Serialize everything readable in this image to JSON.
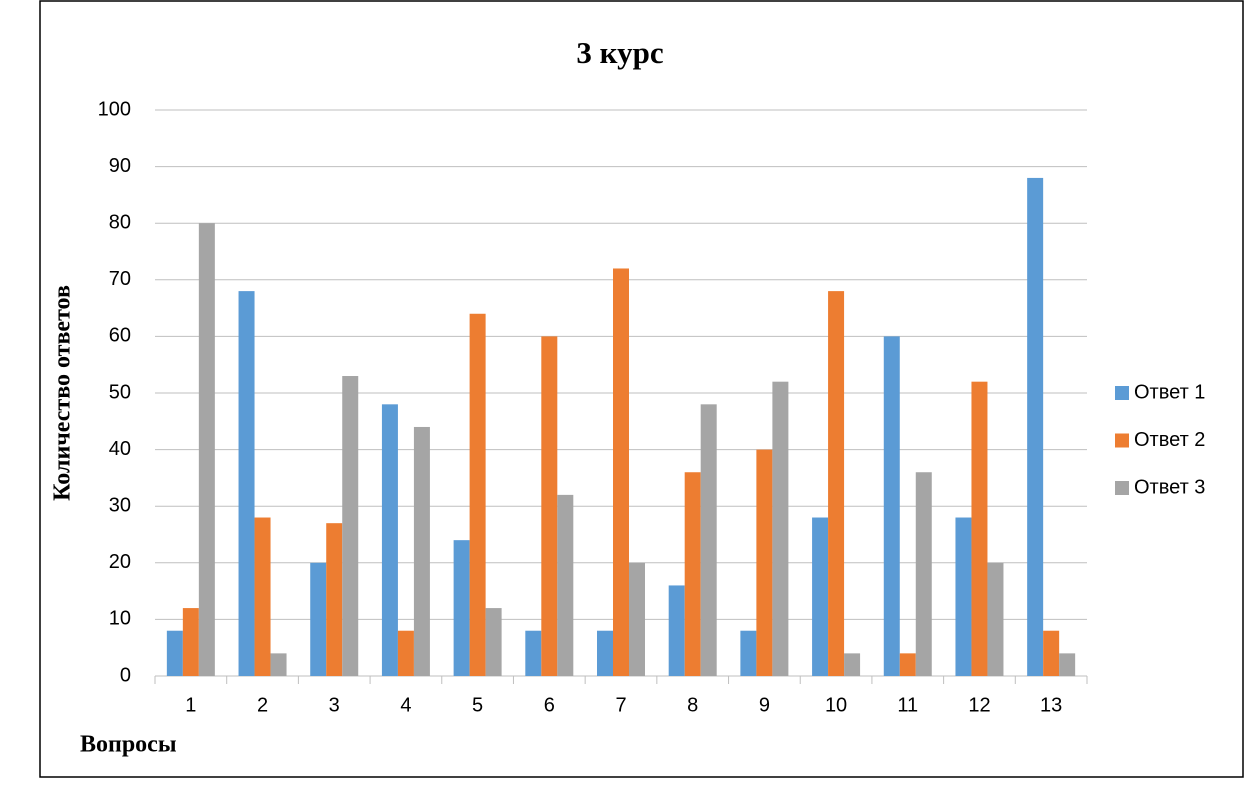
{
  "chart_data": {
    "type": "bar",
    "title": "3 курс",
    "x_label": "Вопросы",
    "y_label": "Количество ответов",
    "categories": [
      "1",
      "2",
      "3",
      "4",
      "5",
      "6",
      "7",
      "8",
      "9",
      "10",
      "11",
      "12",
      "13"
    ],
    "series": [
      {
        "name": "Ответ 1",
        "color": "#5b9bd5",
        "values": [
          8,
          68,
          20,
          48,
          24,
          8,
          8,
          16,
          8,
          28,
          60,
          28,
          88
        ]
      },
      {
        "name": "Ответ 2",
        "color": "#ed7d31",
        "values": [
          12,
          28,
          27,
          8,
          64,
          60,
          72,
          36,
          40,
          68,
          4,
          52,
          8
        ]
      },
      {
        "name": "Ответ 3",
        "color": "#a5a5a5",
        "values": [
          80,
          4,
          53,
          44,
          12,
          32,
          20,
          48,
          52,
          4,
          36,
          20,
          4
        ]
      }
    ],
    "ylim": [
      0,
      100
    ],
    "yticks": [
      0,
      10,
      20,
      30,
      40,
      50,
      60,
      70,
      80,
      90,
      100
    ],
    "grid": true,
    "legend": "right"
  }
}
